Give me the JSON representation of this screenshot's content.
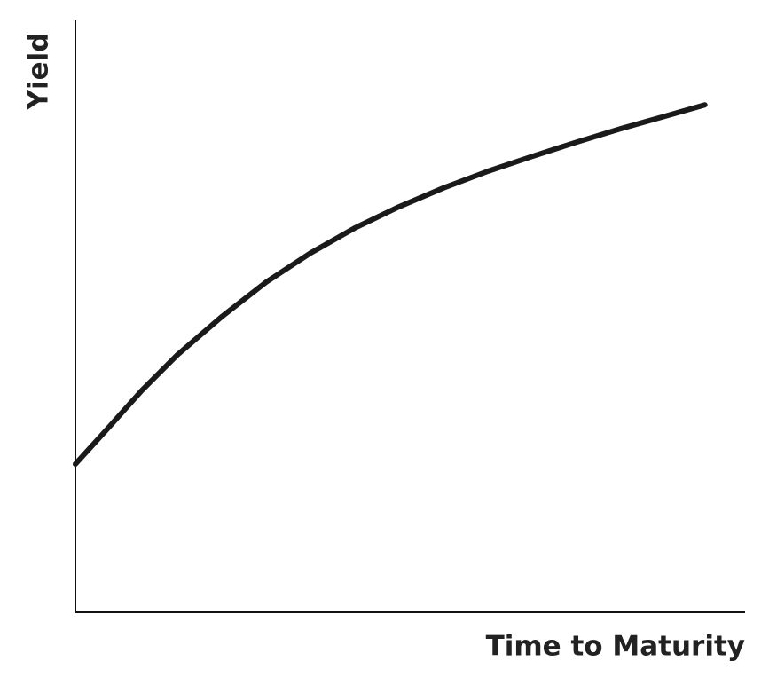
{
  "chart_data": {
    "type": "line",
    "x_label": "Time to Maturity",
    "y_label": "Yield",
    "x": [
      0,
      4.6,
      9.9,
      15.2,
      21.9,
      28.5,
      35.1,
      41.7,
      48.3,
      55.0,
      61.6,
      68.2,
      74.8,
      81.5,
      88.1,
      94.0
    ],
    "series": [
      {
        "color": "#1a1a1a",
        "values": [
          25.0,
          30.7,
          37.4,
          43.4,
          49.9,
          55.7,
          60.6,
          64.8,
          68.4,
          71.6,
          74.4,
          76.9,
          79.3,
          81.6,
          83.7,
          85.6
        ]
      }
    ],
    "xlim": [
      0,
      100
    ],
    "ylim": [
      0,
      100
    ]
  }
}
